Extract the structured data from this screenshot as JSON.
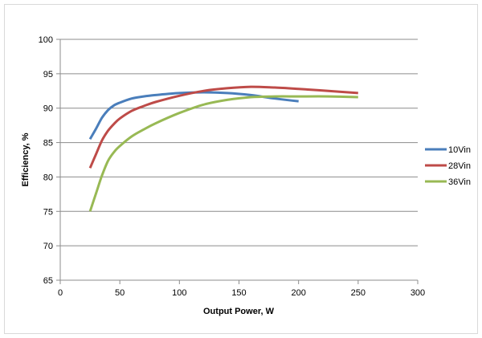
{
  "chart_data": {
    "type": "line",
    "title": "",
    "xlabel": "Output Power, W",
    "ylabel": "Efficiency, %",
    "xlim": [
      0,
      300
    ],
    "ylim": [
      65,
      100
    ],
    "x_ticks": [
      0,
      50,
      100,
      150,
      200,
      250,
      300
    ],
    "y_ticks": [
      65,
      70,
      75,
      80,
      85,
      90,
      95,
      100
    ],
    "grid": "horizontal",
    "legend_position": "right",
    "series": [
      {
        "name": "10Vin",
        "color": "#4a7ebb",
        "x": [
          25,
          30,
          35,
          40,
          45,
          50,
          60,
          70,
          80,
          100,
          120,
          140,
          160,
          180,
          200
        ],
        "y": [
          85.5,
          87.0,
          88.6,
          89.7,
          90.4,
          90.8,
          91.4,
          91.7,
          91.9,
          92.2,
          92.3,
          92.2,
          91.9,
          91.4,
          91.0
        ]
      },
      {
        "name": "28Vin",
        "color": "#be4b48",
        "x": [
          25,
          30,
          35,
          40,
          45,
          50,
          60,
          70,
          80,
          100,
          120,
          140,
          160,
          180,
          200,
          225,
          250
        ],
        "y": [
          81.3,
          83.3,
          85.3,
          86.7,
          87.7,
          88.5,
          89.6,
          90.3,
          90.9,
          91.8,
          92.5,
          92.9,
          93.1,
          93.0,
          92.8,
          92.5,
          92.2
        ]
      },
      {
        "name": "36Vin",
        "color": "#98b954",
        "x": [
          25,
          30,
          35,
          40,
          45,
          50,
          60,
          70,
          80,
          100,
          120,
          140,
          160,
          180,
          200,
          225,
          250
        ],
        "y": [
          75.0,
          77.6,
          80.2,
          82.3,
          83.6,
          84.5,
          85.9,
          86.9,
          87.8,
          89.3,
          90.5,
          91.2,
          91.6,
          91.7,
          91.7,
          91.7,
          91.6
        ]
      }
    ]
  }
}
